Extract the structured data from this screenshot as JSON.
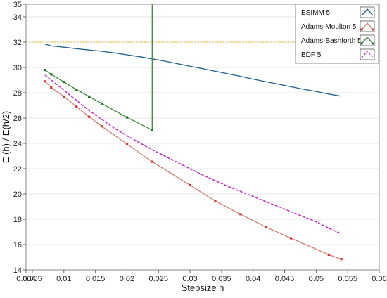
{
  "chart_data": {
    "type": "line",
    "xlabel": "Stepsize h",
    "ylabel": "E (h) / E(h/2)",
    "xlim": [
      0.004,
      0.06
    ],
    "ylim": [
      14,
      35
    ],
    "x_ticks": [
      "0.004",
      "0.005",
      "0.01",
      "0.015",
      "0.02",
      "0.025",
      "0.03",
      "0.035",
      "0.04",
      "0.045",
      "0.05",
      "0.055",
      "0.06"
    ],
    "y_ticks": [
      "14",
      "16",
      "18",
      "20",
      "22",
      "24",
      "26",
      "28",
      "30",
      "32",
      "34",
      "35"
    ],
    "reference_line": {
      "y": 32,
      "color": "#f0c040"
    },
    "legend_position": "top-right",
    "series": [
      {
        "name": "ESIMM 5",
        "color": "#1f5f8b",
        "style": "solid",
        "markers": false,
        "points": [
          [
            0.007,
            31.85
          ],
          [
            0.008,
            31.7
          ],
          [
            0.01,
            31.6
          ],
          [
            0.012,
            31.48
          ],
          [
            0.014,
            31.38
          ],
          [
            0.016,
            31.28
          ],
          [
            0.018,
            31.15
          ],
          [
            0.02,
            31.0
          ],
          [
            0.022,
            30.85
          ],
          [
            0.024,
            30.68
          ],
          [
            0.026,
            30.5
          ],
          [
            0.028,
            30.3
          ],
          [
            0.03,
            30.1
          ],
          [
            0.032,
            29.9
          ],
          [
            0.034,
            29.7
          ],
          [
            0.036,
            29.5
          ],
          [
            0.038,
            29.3
          ],
          [
            0.04,
            29.08
          ],
          [
            0.042,
            28.88
          ],
          [
            0.044,
            28.68
          ],
          [
            0.046,
            28.48
          ],
          [
            0.048,
            28.28
          ],
          [
            0.05,
            28.1
          ],
          [
            0.052,
            27.9
          ],
          [
            0.054,
            27.73
          ]
        ]
      },
      {
        "name": "Adams-Moulton 5",
        "color": "#e03030",
        "line_color": "#d08070",
        "style": "solid",
        "markers": true,
        "points": [
          [
            0.007,
            28.9
          ],
          [
            0.008,
            28.4
          ],
          [
            0.01,
            27.7
          ],
          [
            0.012,
            26.9
          ],
          [
            0.014,
            26.1
          ],
          [
            0.016,
            25.35
          ],
          [
            0.02,
            23.95
          ],
          [
            0.024,
            22.55
          ],
          [
            0.03,
            20.7
          ],
          [
            0.034,
            19.45
          ],
          [
            0.038,
            18.4
          ],
          [
            0.042,
            17.4
          ],
          [
            0.046,
            16.5
          ],
          [
            0.052,
            15.2
          ],
          [
            0.054,
            14.85
          ]
        ]
      },
      {
        "name": "Adams-Bashforth 5",
        "color": "#1e6e1e",
        "line_color": "#3a8a3a",
        "style": "solid",
        "markers": true,
        "points": [
          [
            0.007,
            29.8
          ],
          [
            0.008,
            29.45
          ],
          [
            0.01,
            28.85
          ],
          [
            0.012,
            28.25
          ],
          [
            0.014,
            27.7
          ],
          [
            0.016,
            27.15
          ],
          [
            0.02,
            26.05
          ],
          [
            0.024,
            25.05
          ],
          [
            0.024,
            35.0
          ]
        ]
      },
      {
        "name": "BDF 5",
        "color": "#cc22cc",
        "style": "dashed",
        "markers": false,
        "points": [
          [
            0.007,
            29.4
          ],
          [
            0.008,
            29.0
          ],
          [
            0.01,
            28.2
          ],
          [
            0.012,
            27.4
          ],
          [
            0.014,
            26.6
          ],
          [
            0.016,
            25.9
          ],
          [
            0.018,
            25.2
          ],
          [
            0.02,
            24.6
          ],
          [
            0.022,
            24.05
          ],
          [
            0.024,
            23.5
          ],
          [
            0.026,
            23.0
          ],
          [
            0.028,
            22.5
          ],
          [
            0.03,
            22.0
          ],
          [
            0.032,
            21.5
          ],
          [
            0.034,
            21.05
          ],
          [
            0.036,
            20.6
          ],
          [
            0.038,
            20.2
          ],
          [
            0.04,
            19.8
          ],
          [
            0.042,
            19.4
          ],
          [
            0.044,
            19.0
          ],
          [
            0.046,
            18.6
          ],
          [
            0.048,
            18.2
          ],
          [
            0.05,
            17.8
          ],
          [
            0.052,
            17.3
          ],
          [
            0.054,
            16.85
          ]
        ]
      }
    ]
  }
}
